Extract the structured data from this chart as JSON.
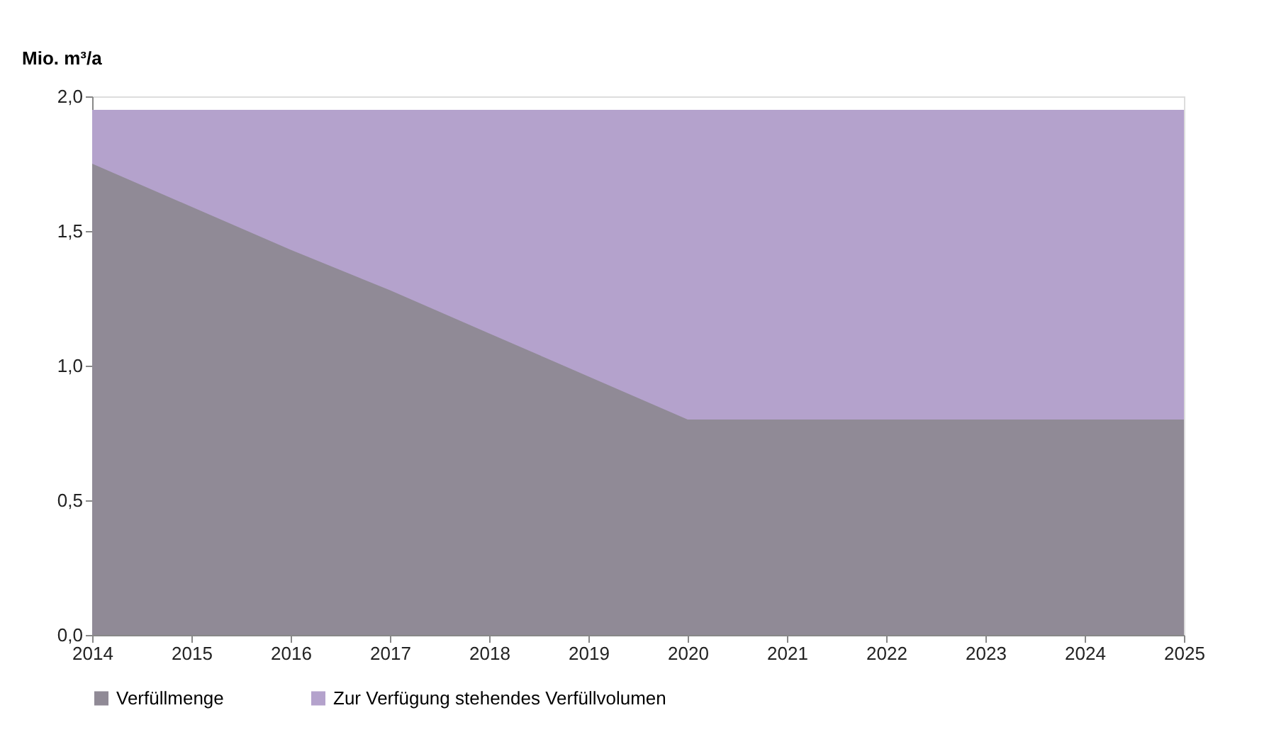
{
  "chart_data": {
    "type": "area",
    "ylabel": "Mio. m³/a",
    "x": [
      2014,
      2015,
      2016,
      2017,
      2018,
      2019,
      2020,
      2021,
      2022,
      2023,
      2024,
      2025
    ],
    "series": [
      {
        "name": "Verfüllmenge",
        "color": "#908a96",
        "values": [
          1.75,
          1.59,
          1.43,
          1.28,
          1.12,
          0.96,
          0.8,
          0.8,
          0.8,
          0.8,
          0.8,
          0.8
        ]
      },
      {
        "name": "Zur Verfügung stehendes Verfüllvolumen",
        "color": "#b4a2cc",
        "values": [
          1.95,
          1.95,
          1.95,
          1.95,
          1.95,
          1.95,
          1.95,
          1.95,
          1.95,
          1.95,
          1.95,
          1.95
        ]
      }
    ],
    "xlim": [
      2014,
      2025
    ],
    "xticks": [
      2014,
      2015,
      2016,
      2017,
      2018,
      2019,
      2020,
      2021,
      2022,
      2023,
      2024,
      2025
    ],
    "ylim": [
      0,
      2.0
    ],
    "yticks": [
      {
        "value": 0,
        "label": "0,0"
      },
      {
        "value": 0.5,
        "label": "0,5"
      },
      {
        "value": 1.0,
        "label": "1,0"
      },
      {
        "value": 1.5,
        "label": "1,5"
      },
      {
        "value": 2.0,
        "label": "2,0"
      }
    ],
    "grid": false,
    "legend": "bottom"
  }
}
